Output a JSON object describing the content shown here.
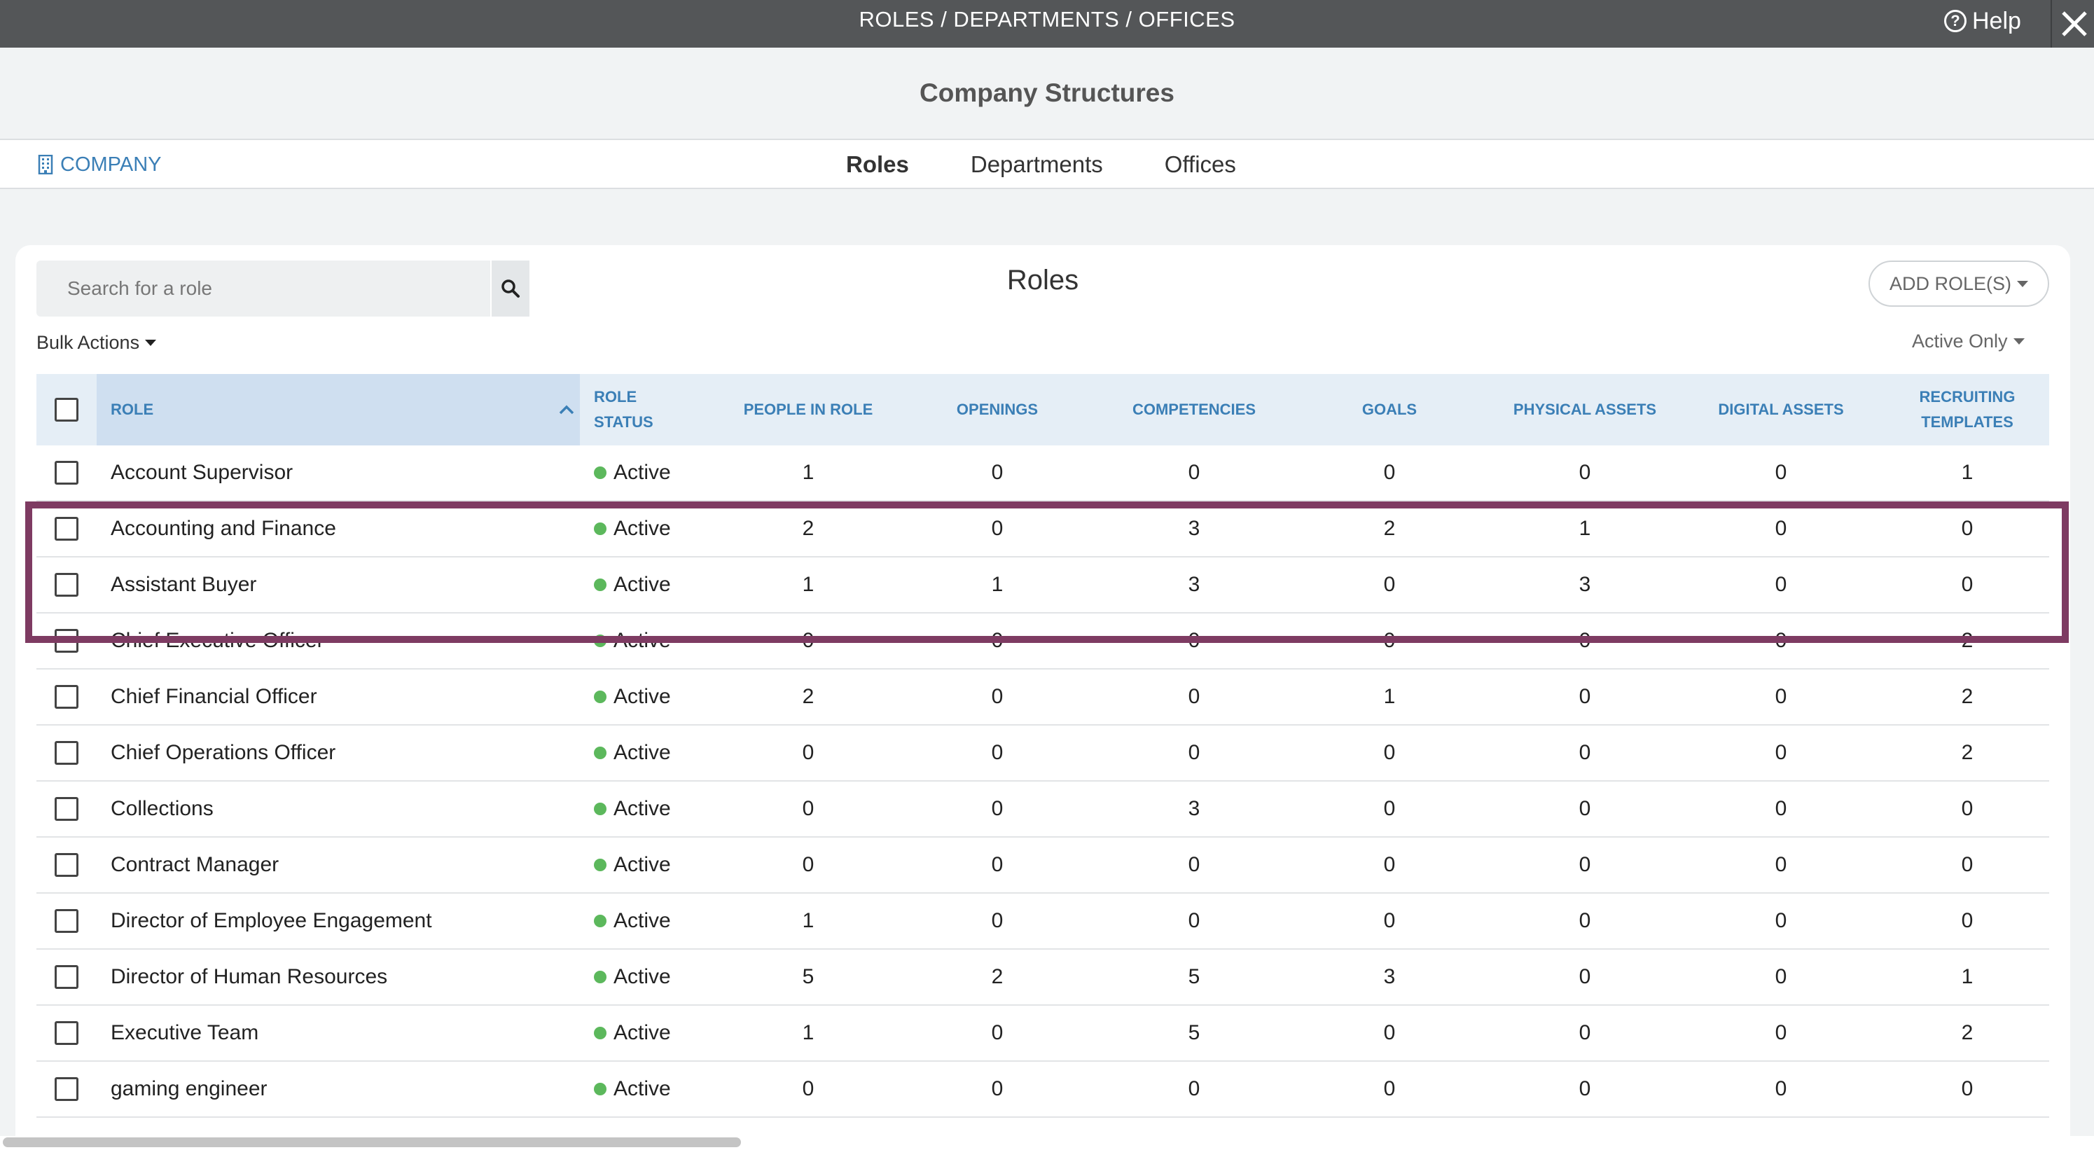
{
  "topbar": {
    "title": "ROLES / DEPARTMENTS / OFFICES",
    "help_label": "Help",
    "help_icon": "question-circle-icon",
    "close_icon": "close-icon"
  },
  "header": {
    "title": "Company Structures"
  },
  "nav": {
    "company_label": "COMPANY",
    "company_icon": "building-icon",
    "tabs": [
      {
        "label": "Roles",
        "active": true
      },
      {
        "label": "Departments",
        "active": false
      },
      {
        "label": "Offices",
        "active": false
      }
    ]
  },
  "card": {
    "title": "Roles",
    "search_placeholder": "Search for a role",
    "search_icon": "search-icon",
    "add_button_label": "ADD ROLE(S)",
    "bulk_actions_label": "Bulk Actions",
    "filter_label": "Active Only"
  },
  "table": {
    "columns": {
      "role": "ROLE",
      "status_line1": "ROLE",
      "status_line2": "STATUS",
      "people": "PEOPLE IN ROLE",
      "openings": "OPENINGS",
      "competencies": "COMPETENCIES",
      "goals": "GOALS",
      "physical": "PHYSICAL ASSETS",
      "digital": "DIGITAL ASSETS",
      "recruiting_line1": "RECRUITING",
      "recruiting_line2": "TEMPLATES"
    },
    "rows": [
      {
        "role": "Account Supervisor",
        "status": "Active",
        "people": "1",
        "openings": "0",
        "competencies": "0",
        "goals": "0",
        "physical": "0",
        "digital": "0",
        "recruiting": "1"
      },
      {
        "role": "Accounting and Finance",
        "status": "Active",
        "people": "2",
        "openings": "0",
        "competencies": "3",
        "goals": "2",
        "physical": "1",
        "digital": "0",
        "recruiting": "0"
      },
      {
        "role": "Assistant Buyer",
        "status": "Active",
        "people": "1",
        "openings": "1",
        "competencies": "3",
        "goals": "0",
        "physical": "3",
        "digital": "0",
        "recruiting": "0"
      },
      {
        "role": "Chief Executive Officer",
        "status": "Active",
        "people": "0",
        "openings": "0",
        "competencies": "0",
        "goals": "0",
        "physical": "0",
        "digital": "0",
        "recruiting": "2"
      },
      {
        "role": "Chief Financial Officer",
        "status": "Active",
        "people": "2",
        "openings": "0",
        "competencies": "0",
        "goals": "1",
        "physical": "0",
        "digital": "0",
        "recruiting": "2"
      },
      {
        "role": "Chief Operations Officer",
        "status": "Active",
        "people": "0",
        "openings": "0",
        "competencies": "0",
        "goals": "0",
        "physical": "0",
        "digital": "0",
        "recruiting": "2"
      },
      {
        "role": "Collections",
        "status": "Active",
        "people": "0",
        "openings": "0",
        "competencies": "3",
        "goals": "0",
        "physical": "0",
        "digital": "0",
        "recruiting": "0"
      },
      {
        "role": "Contract Manager",
        "status": "Active",
        "people": "0",
        "openings": "0",
        "competencies": "0",
        "goals": "0",
        "physical": "0",
        "digital": "0",
        "recruiting": "0"
      },
      {
        "role": "Director of Employee Engagement",
        "status": "Active",
        "people": "1",
        "openings": "0",
        "competencies": "0",
        "goals": "0",
        "physical": "0",
        "digital": "0",
        "recruiting": "0"
      },
      {
        "role": "Director of Human Resources",
        "status": "Active",
        "people": "5",
        "openings": "2",
        "competencies": "5",
        "goals": "3",
        "physical": "0",
        "digital": "0",
        "recruiting": "1"
      },
      {
        "role": "Executive Team",
        "status": "Active",
        "people": "1",
        "openings": "0",
        "competencies": "5",
        "goals": "0",
        "physical": "0",
        "digital": "0",
        "recruiting": "2"
      },
      {
        "role": "gaming engineer",
        "status": "Active",
        "people": "0",
        "openings": "0",
        "competencies": "0",
        "goals": "0",
        "physical": "0",
        "digital": "0",
        "recruiting": "0"
      }
    ]
  },
  "colors": {
    "topbar": "#545658",
    "link": "#3b7fb6",
    "active_dot": "#5cb85c",
    "highlight_border": "#7e3b62"
  }
}
